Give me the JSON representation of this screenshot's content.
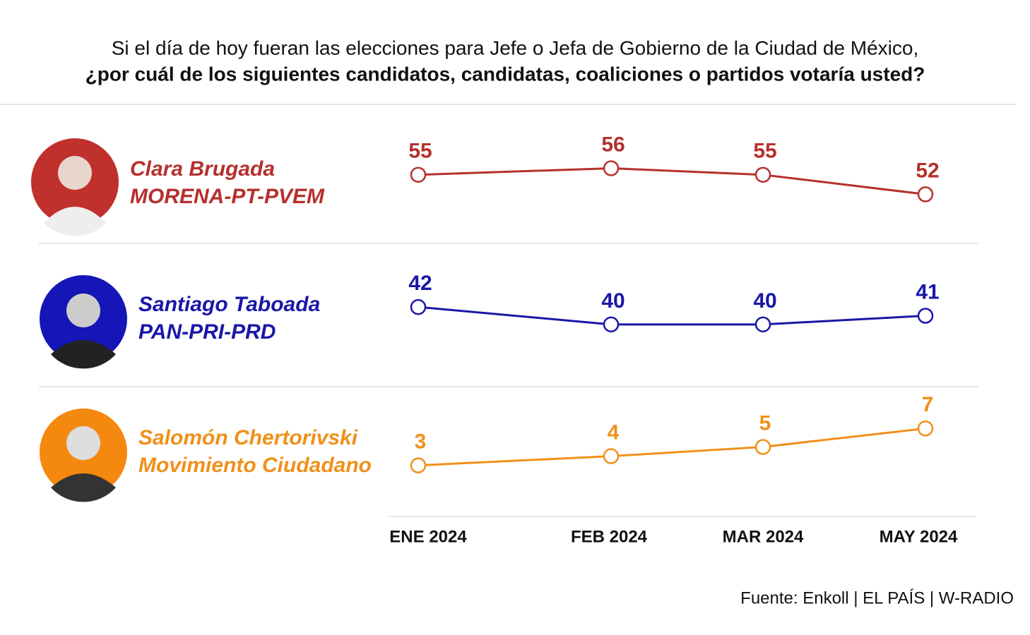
{
  "title": "Si el día de hoy fueran las elecciones para Jefe o Jefa de Gobierno de la Ciudad de México,",
  "subtitle": "¿por cuál de los siguientes candidatos, candidatas, coaliciones o partidos votaría usted?",
  "source": "Fuente: Enkoll | EL PAÍS | W-RADIO",
  "categories": [
    "ENE 2024",
    "FEB 2024",
    "MAR 2024",
    "MAY 2024"
  ],
  "chart_data": [
    {
      "type": "line",
      "title": "Clara Brugada",
      "subtitle": "MORENA-PT-PVEM",
      "color": "#b5302c",
      "values": [
        55,
        56,
        55,
        52
      ],
      "ylim": [
        45,
        64.5
      ]
    },
    {
      "type": "line",
      "title": "Santiago Taboada",
      "subtitle": "PAN-PRI-PRD",
      "color": "#1a17a8",
      "values": [
        42,
        40,
        40,
        41
      ],
      "ylim": [
        33.5,
        48.5
      ]
    },
    {
      "type": "line",
      "title": "Salomón Chertorivski",
      "subtitle": "Movimiento Ciudadano",
      "color": "#f0901a",
      "values": [
        3,
        4,
        5,
        7
      ],
      "ylim": [
        -2,
        11
      ]
    }
  ]
}
